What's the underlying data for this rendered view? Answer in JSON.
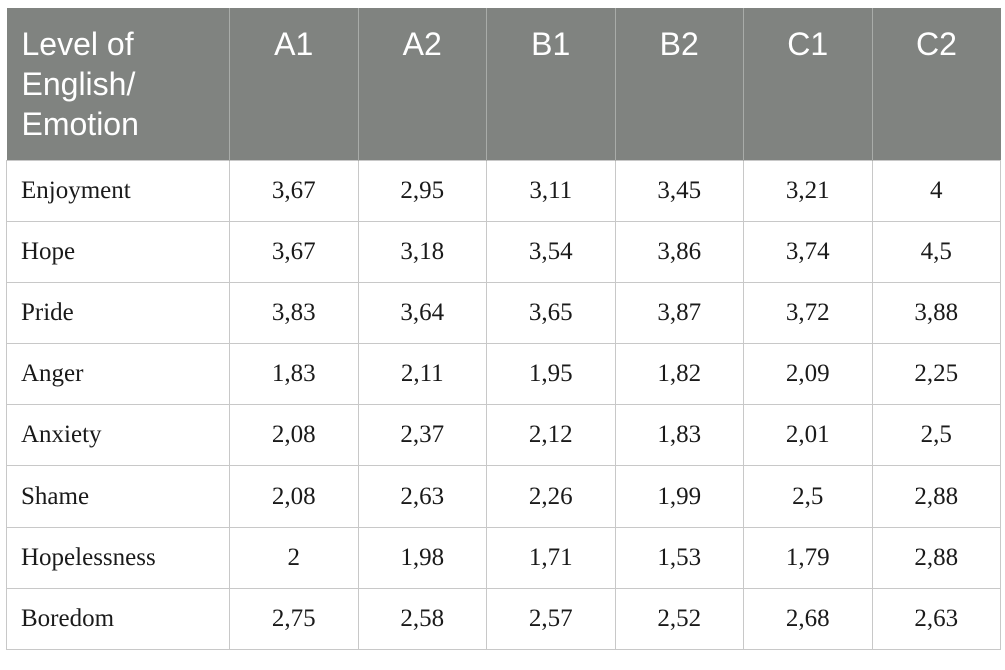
{
  "table": {
    "corner_header": "Level of\nEnglish/\nEmotion",
    "levels": [
      "A1",
      "A2",
      "B1",
      "B2",
      "C1",
      "C2"
    ],
    "rows": [
      {
        "emotion": "Enjoyment",
        "values": [
          "3,67",
          "2,95",
          "3,11",
          "3,45",
          "3,21",
          "4"
        ]
      },
      {
        "emotion": "Hope",
        "values": [
          "3,67",
          "3,18",
          "3,54",
          "3,86",
          "3,74",
          "4,5"
        ]
      },
      {
        "emotion": "Pride",
        "values": [
          "3,83",
          "3,64",
          "3,65",
          "3,87",
          "3,72",
          "3,88"
        ]
      },
      {
        "emotion": "Anger",
        "values": [
          "1,83",
          "2,11",
          "1,95",
          "1,82",
          "2,09",
          "2,25"
        ]
      },
      {
        "emotion": "Anxiety",
        "values": [
          "2,08",
          "2,37",
          "2,12",
          "1,83",
          "2,01",
          "2,5"
        ]
      },
      {
        "emotion": "Shame",
        "values": [
          "2,08",
          "2,63",
          "2,26",
          "1,99",
          "2,5",
          "2,88"
        ]
      },
      {
        "emotion": "Hopelessness",
        "values": [
          "2",
          "1,98",
          "1,71",
          "1,53",
          "1,79",
          "2,88"
        ]
      },
      {
        "emotion": "Boredom",
        "values": [
          "2,75",
          "2,58",
          "2,57",
          "2,52",
          "2,68",
          "2,63"
        ]
      }
    ]
  },
  "colors": {
    "header_bg": "#808380",
    "header_text": "#ffffff",
    "grid_line": "#c8c8c8"
  }
}
